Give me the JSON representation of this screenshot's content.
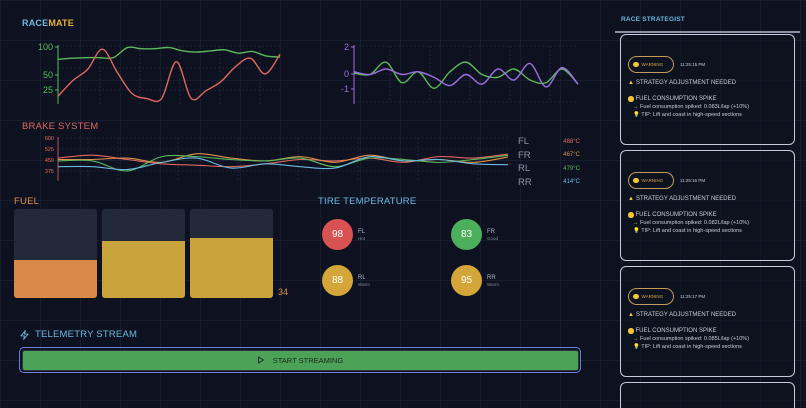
{
  "app": {
    "title_part1": "RACE",
    "title_part2": "MATE"
  },
  "colors": {
    "green": "#5cb85c",
    "red": "#e0675e",
    "purple": "#9b6fe0",
    "orange": "#e09048",
    "yellow": "#d4a63a",
    "blue": "#6cb8e0",
    "accent": "#6cb8e0"
  },
  "chart_data": [
    {
      "type": "line",
      "title": "",
      "ylim": [
        0,
        100
      ],
      "yticks": [
        "100",
        "50",
        "25"
      ],
      "series": [
        {
          "name": "green",
          "color": "#5cb85c",
          "values": [
            78,
            80,
            81,
            81,
            81,
            99,
            97,
            97,
            99,
            93,
            91,
            93,
            95,
            89,
            92,
            84,
            82
          ]
        },
        {
          "name": "red",
          "color": "#e0675e",
          "values": [
            12,
            40,
            60,
            96,
            55,
            17,
            8,
            8,
            74,
            8,
            22,
            38,
            65,
            80,
            52,
            87
          ]
        }
      ]
    },
    {
      "type": "line",
      "ylim": [
        -2,
        2
      ],
      "yticks": [
        "2",
        "0",
        "-1"
      ],
      "series": [
        {
          "name": "green",
          "color": "#5cb85c",
          "values": [
            0.1,
            0,
            0.9,
            -0.6,
            0.2,
            -1,
            0.2,
            0.9,
            0,
            -0.2,
            0.4,
            -0.4,
            -0.6,
            0.4,
            -0.7
          ]
        },
        {
          "name": "purple",
          "color": "#9b6fe0",
          "values": [
            0.2,
            0,
            0.4,
            0,
            0.2,
            -0.2,
            -0.8,
            0,
            -0.7,
            0.4,
            -0.4,
            0.8,
            -0.9,
            0.5,
            -0.7
          ]
        }
      ]
    },
    {
      "type": "line",
      "title": "BRAKE SYSTEM",
      "ylim": [
        300,
        600
      ],
      "yticks": [
        "600",
        "525",
        "450",
        "375"
      ],
      "series": [
        {
          "name": "FL",
          "color": "#e0675e",
          "values": [
            460,
            480,
            450,
            420,
            410,
            400,
            420,
            450,
            440,
            460,
            430,
            470,
            460,
            488
          ]
        },
        {
          "name": "FR",
          "color": "#e09048",
          "values": [
            450,
            450,
            460,
            430,
            490,
            460,
            440,
            470,
            430,
            480,
            440,
            450,
            430,
            467
          ]
        },
        {
          "name": "RL",
          "color": "#5cb85c",
          "values": [
            440,
            440,
            370,
            470,
            470,
            450,
            440,
            460,
            400,
            460,
            450,
            430,
            450,
            479
          ]
        },
        {
          "name": "RR",
          "color": "#6cb8e0",
          "values": [
            400,
            400,
            380,
            430,
            460,
            390,
            420,
            400,
            390,
            470,
            440,
            450,
            420,
            414
          ]
        }
      ]
    }
  ],
  "brake": {
    "title": "BRAKE SYSTEM",
    "legend": [
      {
        "label": "FL",
        "value": "488°C",
        "color": "#e0675e"
      },
      {
        "label": "FR",
        "value": "467°C",
        "color": "#e09048"
      },
      {
        "label": "RL",
        "value": "479°C",
        "color": "#5cb85c"
      },
      {
        "label": "RR",
        "value": "414°C",
        "color": "#6cb8e0"
      }
    ]
  },
  "fuel": {
    "title": "FUEL",
    "value": "34",
    "bars": [
      {
        "pct": 43,
        "color": "#d98a48"
      },
      {
        "pct": 64,
        "color": "#c9a33c"
      },
      {
        "pct": 67,
        "color": "#c9a33c"
      }
    ]
  },
  "tires": {
    "title": "TIRE TEMPERATURE",
    "items": [
      {
        "pos": "FL",
        "value": "98",
        "status": "Hot",
        "color": "#d95252"
      },
      {
        "pos": "FR",
        "value": "83",
        "status": "Good",
        "color": "#4caf5c"
      },
      {
        "pos": "RL",
        "value": "88",
        "status": "Warm",
        "color": "#d4a63a"
      },
      {
        "pos": "RR",
        "value": "95",
        "status": "Warm",
        "color": "#d4a63a"
      }
    ]
  },
  "telemetry": {
    "title": "TELEMETRY STREAM",
    "button_label": "START STREAMING"
  },
  "strategist": {
    "title": "RACE STRATEGIST",
    "cards": [
      {
        "badge": "WARNING",
        "time": "11:25:15 PM",
        "headline": "STRATEGY ADJUSTMENT NEEDED",
        "event": "FUEL CONSUMPTION SPIKE",
        "detail": "→ Fuel consumption spiked: 0.083L/lap (+10%)",
        "tip": "TIP: Lift and coast in high-speed sections"
      },
      {
        "badge": "WARNING",
        "time": "11:25:16 PM",
        "headline": "STRATEGY ADJUSTMENT NEEDED",
        "event": "FUEL CONSUMPTION SPIKE",
        "detail": "→ Fuel consumption spiked: 0.082L/lap (+10%)",
        "tip": "TIP: Lift and coast in high-speed sections"
      },
      {
        "badge": "WARNING",
        "time": "11:25:17 PM",
        "headline": "STRATEGY ADJUSTMENT NEEDED",
        "event": "FUEL CONSUMPTION SPIKE",
        "detail": "→ Fuel consumption spiked: 0.085L/lap (+10%)",
        "tip": "TIP: Lift and coast in high-speed sections"
      }
    ]
  }
}
